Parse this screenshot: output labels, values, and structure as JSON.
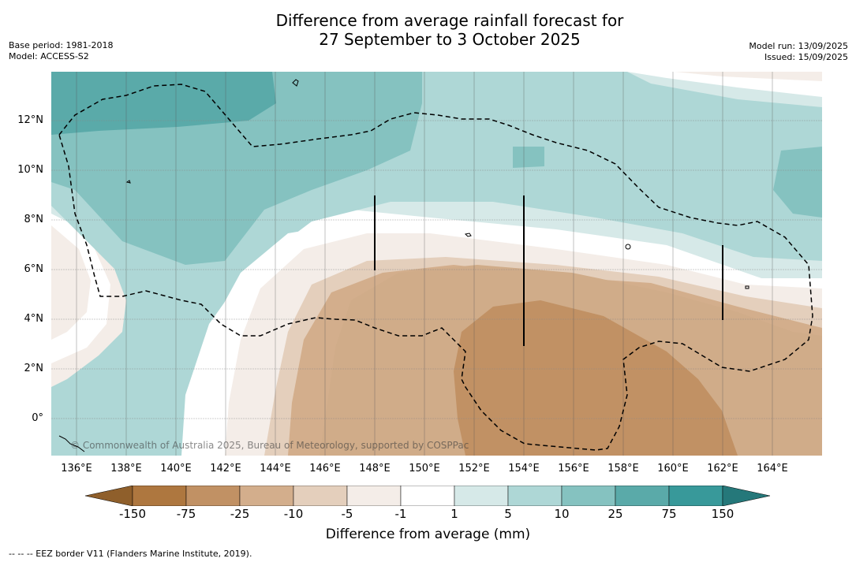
{
  "title": {
    "line1": "Difference from average rainfall forecast for",
    "line2": "27 September to 3 October 2025"
  },
  "meta_left": {
    "base_period": "Base period: 1981-2018",
    "model": "Model: ACCESS-S2"
  },
  "meta_right": {
    "model_run": "Model run: 13/09/2025",
    "issued": "Issued: 15/09/2025"
  },
  "map": {
    "lon_labels": [
      "136°E",
      "138°E",
      "140°E",
      "142°E",
      "144°E",
      "146°E",
      "148°E",
      "150°E",
      "152°E",
      "154°E",
      "156°E",
      "158°E",
      "160°E",
      "162°E",
      "164°E"
    ],
    "lat_labels": [
      "12°N",
      "10°N",
      "8°N",
      "6°N",
      "4°N",
      "2°N",
      "0°"
    ],
    "copyright": "© Commonwealth of Australia 2025, Bureau of Meteorology, supported by COSPPac"
  },
  "colorbar": {
    "ticks": [
      "-150",
      "-75",
      "-25",
      "-10",
      "-5",
      "-1",
      "1",
      "5",
      "10",
      "25",
      "75",
      "150"
    ],
    "colors": [
      "#8f5f2b",
      "#ae773f",
      "#c19164",
      "#d3ae8c",
      "#e4cfbc",
      "#f4ede8",
      "#ffffff",
      "#d6e9e8",
      "#aed7d6",
      "#85c2c0",
      "#5aaaa9",
      "#38999a",
      "#25787a"
    ],
    "title": "Difference from average (mm)"
  },
  "footnote": "--  --  -- EEZ border V11 (Flanders Marine Institute, 2019)."
}
